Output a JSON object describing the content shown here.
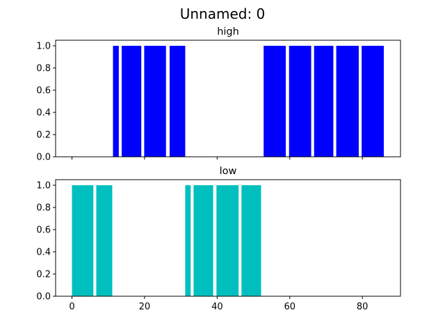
{
  "figure": {
    "title": "Unnamed: 0"
  },
  "chart_data": [
    {
      "type": "bar",
      "title": "high",
      "color": "#0000ff",
      "xlim": [
        -4.5,
        90.5
      ],
      "ylim": [
        0,
        1.05
      ],
      "x_ticks": [
        0,
        20,
        40,
        60,
        80
      ],
      "x_tick_labels": [],
      "y_ticks": [
        0.0,
        0.2,
        0.4,
        0.6,
        0.8,
        1.0
      ],
      "y_tick_labels": [
        "0.0",
        "0.2",
        "0.4",
        "0.6",
        "0.8",
        "1.0"
      ],
      "bars": [
        {
          "x0": 11.3,
          "x1": 12.9,
          "value": 1.0
        },
        {
          "x0": 13.7,
          "x1": 19.1,
          "value": 1.0
        },
        {
          "x0": 19.9,
          "x1": 25.9,
          "value": 1.0
        },
        {
          "x0": 26.9,
          "x1": 31.2,
          "value": 1.0
        },
        {
          "x0": 52.8,
          "x1": 58.9,
          "value": 1.0
        },
        {
          "x0": 59.8,
          "x1": 65.9,
          "value": 1.0
        },
        {
          "x0": 66.7,
          "x1": 72.0,
          "value": 1.0
        },
        {
          "x0": 72.8,
          "x1": 79.0,
          "value": 1.0
        },
        {
          "x0": 79.8,
          "x1": 85.9,
          "value": 1.0
        }
      ]
    },
    {
      "type": "bar",
      "title": "low",
      "color": "#00bfbf",
      "xlim": [
        -4.5,
        90.5
      ],
      "ylim": [
        0,
        1.05
      ],
      "x_ticks": [
        0,
        20,
        40,
        60,
        80
      ],
      "x_tick_labels": [
        "0",
        "20",
        "40",
        "60",
        "80"
      ],
      "y_ticks": [
        0.0,
        0.2,
        0.4,
        0.6,
        0.8,
        1.0
      ],
      "y_tick_labels": [
        "0.0",
        "0.2",
        "0.4",
        "0.6",
        "0.8",
        "1.0"
      ],
      "bars": [
        {
          "x0": 0.0,
          "x1": 5.9,
          "value": 1.0
        },
        {
          "x0": 6.7,
          "x1": 11.1,
          "value": 1.0
        },
        {
          "x0": 31.2,
          "x1": 32.7,
          "value": 1.0
        },
        {
          "x0": 33.5,
          "x1": 38.9,
          "value": 1.0
        },
        {
          "x0": 39.8,
          "x1": 45.9,
          "value": 1.0
        },
        {
          "x0": 46.7,
          "x1": 52.1,
          "value": 1.0
        }
      ]
    }
  ]
}
